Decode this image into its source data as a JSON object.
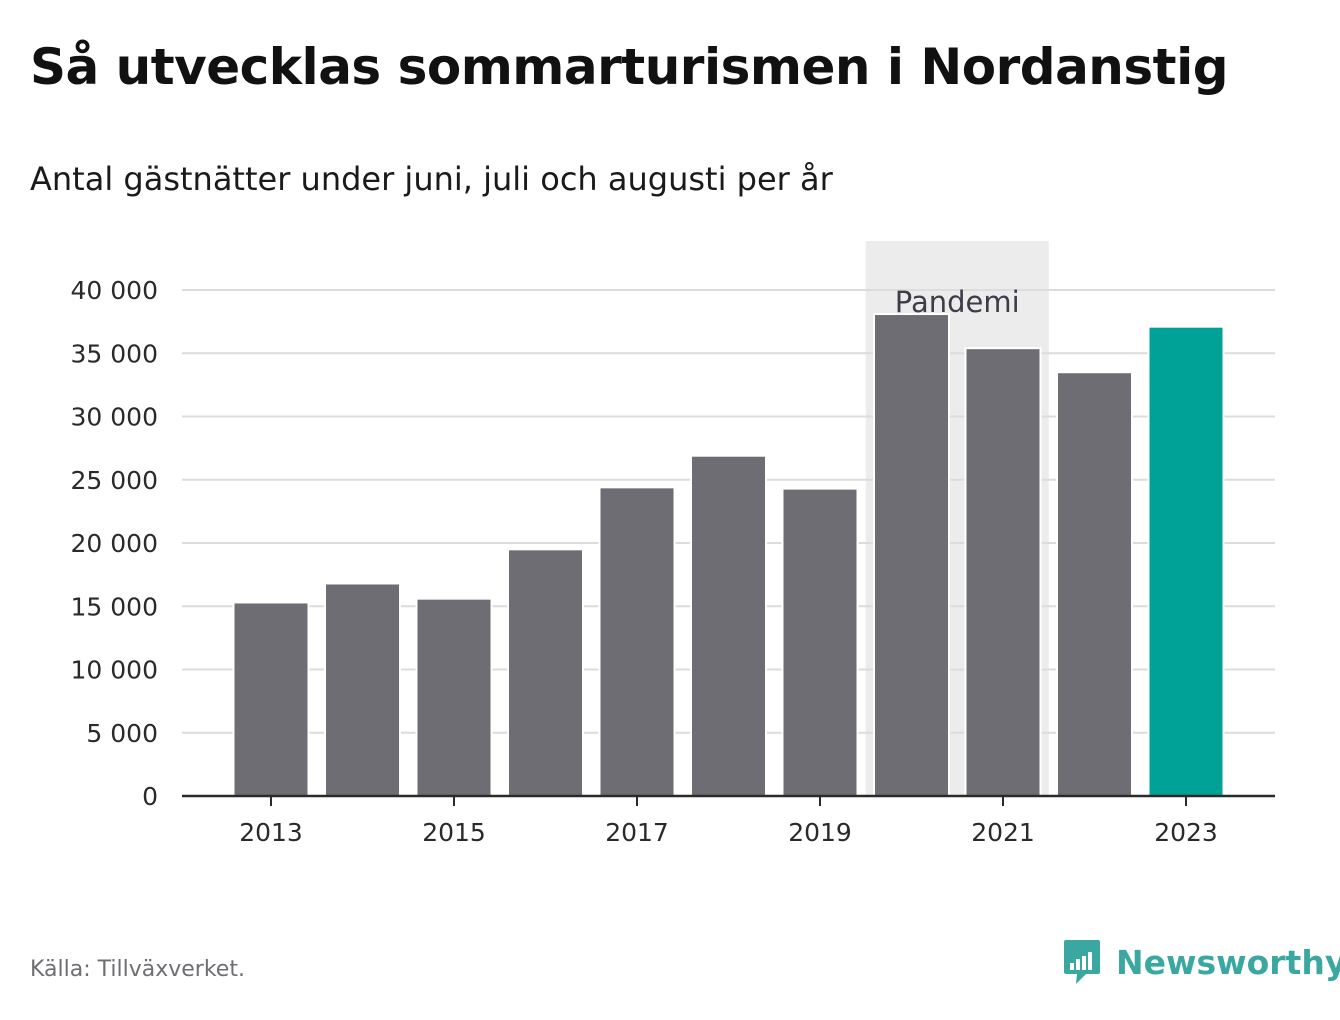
{
  "title": "Så utvecklas sommarturismen i Nordanstig",
  "subtitle": "Antal gästnätter under juni, juli och augusti per år",
  "source": "Källa: Tillväxverket.",
  "brand": {
    "name": "Newsworthy",
    "icon": "newsworthy-logo-icon"
  },
  "colors": {
    "bar": "#6e6d74",
    "highlight": "#00a298",
    "band": "#ececec",
    "grid": "#dcdcdc",
    "brand": "#3aa8a0"
  },
  "chart_data": {
    "type": "bar",
    "categories": [
      "2013",
      "2014",
      "2015",
      "2016",
      "2017",
      "2018",
      "2019",
      "2020",
      "2021",
      "2022",
      "2023"
    ],
    "values": [
      15300,
      16800,
      15600,
      19500,
      24400,
      26900,
      24300,
      38100,
      35400,
      33500,
      37100
    ],
    "highlight_category": "2023",
    "ylim": [
      0,
      40000
    ],
    "yticks": [
      0,
      5000,
      10000,
      15000,
      20000,
      25000,
      30000,
      35000,
      40000
    ],
    "ytick_labels": [
      "0",
      "5 000",
      "10 000",
      "15 000",
      "20 000",
      "25 000",
      "30 000",
      "35 000",
      "40 000"
    ],
    "xtick_labels": [
      "2013",
      "2015",
      "2017",
      "2019",
      "2021",
      "2023"
    ],
    "annotation": {
      "label": "Pandemi",
      "from": "2020",
      "to": "2021"
    },
    "grid": true
  }
}
